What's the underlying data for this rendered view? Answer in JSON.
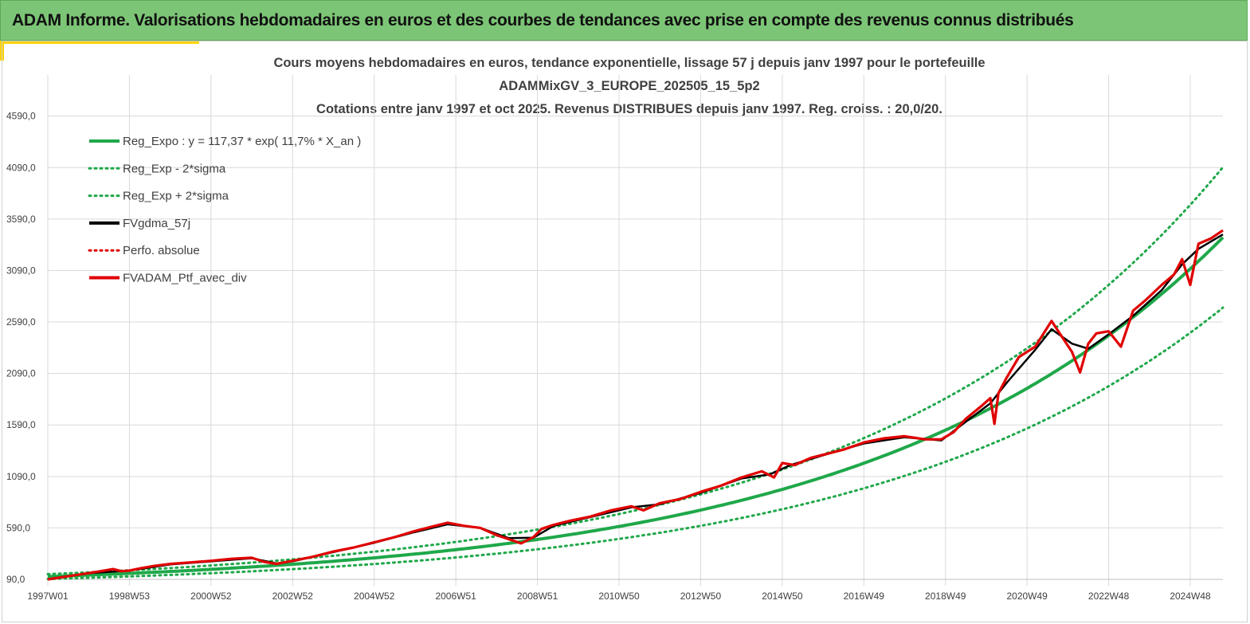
{
  "header": {
    "title": "ADAM Informe. Valorisations hebdomadaires en euros et des courbes de tendances avec prise en compte des revenus connus distribués"
  },
  "colors": {
    "header_bg": "#7cc576",
    "accent": "#ffd200",
    "reg": "#1fa84a",
    "black": "#000000",
    "red": "#e00000"
  },
  "chart_data": {
    "type": "line",
    "title_lines": [
      "Cours moyens hebdomadaires  en euros, tendance exponentielle, lissage 57 j depuis janv 1997 pour le portefeuille",
      "ADAMMixGV_3_EUROPE_202505_15_5p2",
      "Cotations  entre janv 1997 et oct 2025. Revenus DISTRIBUES depuis janv 1997. Reg. croiss. : 20,0/20."
    ],
    "ylim": [
      90,
      4990
    ],
    "y_ticks": [
      "90,0",
      "590,0",
      "1090,0",
      "1590,0",
      "2090,0",
      "2590,0",
      "3090,0",
      "3590,0",
      "4090,0",
      "4590,0"
    ],
    "y_tick_values": [
      90,
      590,
      1090,
      1590,
      2090,
      2590,
      3090,
      3590,
      4090,
      4590
    ],
    "xlim": [
      1997.0,
      2025.8
    ],
    "x_ticks": [
      "1997W01",
      "1998W53",
      "2000W52",
      "2002W52",
      "2004W52",
      "2006W51",
      "2008W51",
      "2010W50",
      "2012W50",
      "2014W50",
      "2016W49",
      "2018W49",
      "2020W49",
      "2022W48",
      "2024W48"
    ],
    "x_tick_years": [
      1997.0,
      1999.0,
      2001.0,
      2003.0,
      2005.0,
      2007.0,
      2009.0,
      2011.0,
      2013.0,
      2015.0,
      2017.0,
      2019.0,
      2021.0,
      2023.0,
      2025.0
    ],
    "regression": {
      "a": 117.37,
      "growth_rate": 0.117,
      "band_factor_low": 0.8,
      "band_factor_high": 1.2
    },
    "legend": [
      {
        "label": "Reg_Expo : y = 117,37 * exp( 11,7% *  X_an )",
        "style": "solid",
        "color": "#1fa84a",
        "width": 4
      },
      {
        "label": "Reg_Exp - 2*sigma",
        "style": "dotted",
        "color": "#1fa84a",
        "width": 3
      },
      {
        "label": "Reg_Exp + 2*sigma",
        "style": "dotted",
        "color": "#1fa84a",
        "width": 3
      },
      {
        "label": "FVgdma_57j",
        "style": "solid",
        "color": "#000000",
        "width": 4
      },
      {
        "label": "Perfo. absolue",
        "style": "dotted",
        "color": "#e00000",
        "width": 3
      },
      {
        "label": "FVADAM_Ptf_avec_div",
        "style": "solid",
        "color": "#e00000",
        "width": 4
      }
    ],
    "series": [
      {
        "name": "FVADAM_Ptf_avec_div",
        "x": [
          1997.0,
          1997.5,
          1998.0,
          1998.3,
          1998.6,
          1998.8,
          1999.0,
          1999.3,
          1999.6,
          2000.0,
          2000.5,
          2001.0,
          2001.5,
          2002.0,
          2002.3,
          2002.6,
          2003.0,
          2003.5,
          2004.0,
          2004.5,
          2005.0,
          2005.5,
          2006.0,
          2006.4,
          2006.8,
          2007.2,
          2007.6,
          2008.0,
          2008.3,
          2008.6,
          2008.9,
          2009.1,
          2009.4,
          2009.8,
          2010.3,
          2010.8,
          2011.3,
          2011.6,
          2012.0,
          2012.5,
          2013.0,
          2013.5,
          2014.0,
          2014.5,
          2014.8,
          2015.0,
          2015.3,
          2015.7,
          2016.0,
          2016.5,
          2017.0,
          2017.5,
          2018.0,
          2018.5,
          2018.9,
          2019.2,
          2019.5,
          2019.9,
          2020.1,
          2020.2,
          2020.3,
          2020.5,
          2020.8,
          2021.2,
          2021.6,
          2021.8,
          2022.1,
          2022.3,
          2022.5,
          2022.7,
          2023.0,
          2023.3,
          2023.6,
          2023.9,
          2024.3,
          2024.6,
          2024.8,
          2025.0,
          2025.2,
          2025.5,
          2025.8
        ],
        "y": [
          90,
          120,
          150,
          170,
          190,
          170,
          175,
          200,
          220,
          240,
          255,
          270,
          290,
          300,
          260,
          240,
          270,
          310,
          360,
          400,
          450,
          500,
          560,
          600,
          640,
          610,
          590,
          520,
          480,
          440,
          500,
          580,
          620,
          660,
          700,
          760,
          800,
          760,
          830,
          870,
          940,
          1000,
          1080,
          1140,
          1080,
          1220,
          1200,
          1270,
          1300,
          1350,
          1420,
          1460,
          1480,
          1450,
          1450,
          1520,
          1650,
          1780,
          1850,
          1600,
          1900,
          2050,
          2250,
          2350,
          2600,
          2480,
          2300,
          2100,
          2380,
          2480,
          2500,
          2350,
          2700,
          2800,
          2950,
          3050,
          3200,
          2950,
          3350,
          3400,
          3480
        ]
      },
      {
        "name": "FVgdma_57j",
        "x": [
          1997.0,
          1998.0,
          1999.0,
          2000.0,
          2001.0,
          2002.0,
          2002.6,
          2003.0,
          2004.0,
          2005.0,
          2006.0,
          2006.8,
          2007.6,
          2008.3,
          2008.9,
          2009.4,
          2010.3,
          2011.3,
          2012.0,
          2013.0,
          2014.0,
          2014.7,
          2015.2,
          2016.0,
          2017.0,
          2018.0,
          2018.9,
          2019.5,
          2020.1,
          2020.5,
          2021.2,
          2021.6,
          2022.1,
          2022.5,
          2023.0,
          2023.6,
          2024.3,
          2024.8,
          2025.2,
          2025.8
        ],
        "y": [
          90,
          150,
          175,
          235,
          265,
          295,
          245,
          265,
          355,
          445,
          550,
          625,
          590,
          490,
          495,
          610,
          695,
          790,
          820,
          930,
          1070,
          1110,
          1200,
          1295,
          1410,
          1470,
          1440,
          1620,
          1800,
          2000,
          2320,
          2520,
          2380,
          2330,
          2470,
          2650,
          2900,
          3150,
          3300,
          3440
        ]
      }
    ]
  }
}
